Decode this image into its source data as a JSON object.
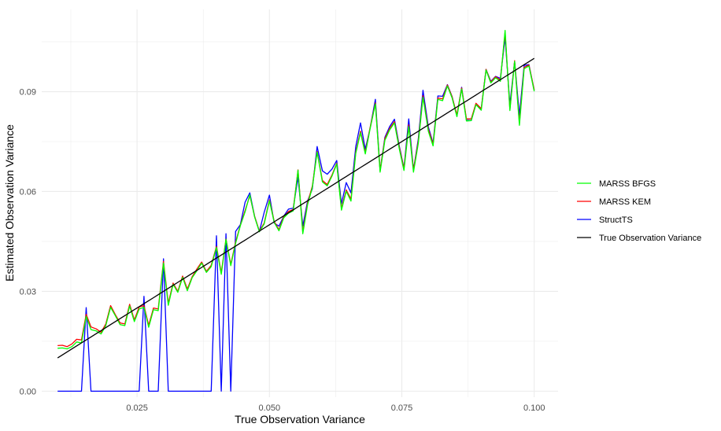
{
  "chart_data": {
    "type": "line",
    "xlabel": "True Observation Variance",
    "ylabel": "Estimated Observation Variance",
    "xlim": [
      0.007,
      0.1045
    ],
    "ylim": [
      -0.0018,
      0.1147
    ],
    "x_ticks": [
      0.025,
      0.05,
      0.075,
      0.1
    ],
    "x_tick_labels": [
      "0.025",
      "0.050",
      "0.075",
      "0.100"
    ],
    "y_ticks": [
      0.0,
      0.03,
      0.06,
      0.09
    ],
    "y_tick_labels": [
      "0.00",
      "0.03",
      "0.06",
      "0.09"
    ],
    "grid": true,
    "legend_position": "right",
    "x": [
      0.01,
      0.0109,
      0.0118,
      0.0127,
      0.0136,
      0.0145,
      0.0154,
      0.0163,
      0.0173,
      0.0182,
      0.0191,
      0.02,
      0.0209,
      0.0218,
      0.0227,
      0.0236,
      0.0245,
      0.0254,
      0.0263,
      0.0272,
      0.0281,
      0.029,
      0.03,
      0.0309,
      0.0318,
      0.0327,
      0.0336,
      0.0345,
      0.0354,
      0.0363,
      0.0372,
      0.0381,
      0.039,
      0.04,
      0.0409,
      0.0418,
      0.0427,
      0.0436,
      0.0445,
      0.0454,
      0.0463,
      0.0472,
      0.0481,
      0.049,
      0.05,
      0.0509,
      0.0518,
      0.0527,
      0.0536,
      0.0545,
      0.0554,
      0.0563,
      0.0572,
      0.0581,
      0.059,
      0.06,
      0.0609,
      0.0618,
      0.0627,
      0.0636,
      0.0645,
      0.0654,
      0.0663,
      0.0672,
      0.0681,
      0.069,
      0.07,
      0.0709,
      0.0718,
      0.0727,
      0.0736,
      0.0745,
      0.0754,
      0.0763,
      0.0772,
      0.0781,
      0.079,
      0.08,
      0.0809,
      0.0818,
      0.0827,
      0.0836,
      0.0845,
      0.0854,
      0.0863,
      0.0872,
      0.0881,
      0.089,
      0.09,
      0.0909,
      0.0918,
      0.0927,
      0.0936,
      0.0945,
      0.0954,
      0.0963,
      0.0972,
      0.0981,
      0.099,
      0.1
    ],
    "series": [
      {
        "name": "MARSS BFGS",
        "color": "#00ff00",
        "values": [
          0.0129,
          0.013,
          0.0127,
          0.0134,
          0.0148,
          0.0145,
          0.0225,
          0.0185,
          0.0181,
          0.0172,
          0.0197,
          0.0252,
          0.0227,
          0.02,
          0.0197,
          0.0256,
          0.0209,
          0.0247,
          0.0252,
          0.0192,
          0.0245,
          0.0242,
          0.0385,
          0.0258,
          0.0321,
          0.0297,
          0.0342,
          0.0302,
          0.0341,
          0.0362,
          0.0385,
          0.0357,
          0.0374,
          0.0432,
          0.0351,
          0.0456,
          0.0377,
          0.0444,
          0.0497,
          0.0539,
          0.059,
          0.0523,
          0.0479,
          0.0502,
          0.0572,
          0.0507,
          0.0482,
          0.0521,
          0.0535,
          0.0542,
          0.0664,
          0.0473,
          0.0561,
          0.0612,
          0.0718,
          0.0629,
          0.0617,
          0.0646,
          0.0683,
          0.0544,
          0.0601,
          0.0571,
          0.0715,
          0.0777,
          0.0713,
          0.0787,
          0.0863,
          0.0658,
          0.0754,
          0.0785,
          0.0806,
          0.0729,
          0.0663,
          0.0795,
          0.0658,
          0.0744,
          0.0883,
          0.0781,
          0.0737,
          0.0877,
          0.0873,
          0.0917,
          0.0881,
          0.0825,
          0.0908,
          0.0812,
          0.0813,
          0.0861,
          0.0844,
          0.0965,
          0.0926,
          0.0942,
          0.0931,
          0.1084,
          0.0843,
          0.0991,
          0.0799,
          0.0969,
          0.0977,
          0.0901
        ]
      },
      {
        "name": "MARSS KEM",
        "color": "#ff0000",
        "values": [
          0.0137,
          0.0138,
          0.0134,
          0.0142,
          0.0156,
          0.0154,
          0.0231,
          0.0193,
          0.0187,
          0.0177,
          0.0202,
          0.0257,
          0.023,
          0.0205,
          0.0202,
          0.0261,
          0.0214,
          0.0253,
          0.0257,
          0.0198,
          0.025,
          0.0247,
          0.039,
          0.0264,
          0.0325,
          0.03,
          0.0346,
          0.0307,
          0.0344,
          0.0367,
          0.0388,
          0.036,
          0.0378,
          0.0435,
          0.0356,
          0.0457,
          0.0381,
          0.0448,
          0.0498,
          0.0543,
          0.0588,
          0.0525,
          0.0481,
          0.0505,
          0.0575,
          0.051,
          0.0485,
          0.0525,
          0.054,
          0.0546,
          0.0665,
          0.0478,
          0.0566,
          0.0616,
          0.072,
          0.0633,
          0.0621,
          0.0649,
          0.0685,
          0.0549,
          0.0605,
          0.0577,
          0.0719,
          0.0781,
          0.0717,
          0.0791,
          0.0866,
          0.0663,
          0.0759,
          0.0789,
          0.081,
          0.0734,
          0.0668,
          0.08,
          0.0664,
          0.075,
          0.0888,
          0.0787,
          0.0742,
          0.0881,
          0.0878,
          0.092,
          0.0884,
          0.083,
          0.0911,
          0.0818,
          0.0818,
          0.0865,
          0.0849,
          0.0967,
          0.0929,
          0.0945,
          0.0935,
          0.1078,
          0.0847,
          0.0993,
          0.0806,
          0.0973,
          0.098,
          0.0905
        ]
      },
      {
        "name": "StructTS",
        "color": "#0000ff",
        "values": [
          0.0,
          0.0,
          0.0,
          0.0,
          0.0,
          0.0,
          0.0251,
          0.0,
          0.0,
          0.0,
          0.0,
          0.0,
          0.0,
          0.0,
          0.0,
          0.0,
          0.0,
          0.0,
          0.0285,
          0.0,
          0.0,
          0.0,
          0.0398,
          0.0,
          0.0,
          0.0,
          0.0,
          0.0,
          0.0,
          0.0,
          0.0,
          0.0,
          0.0,
          0.0467,
          0.0,
          0.0473,
          0.0,
          0.048,
          0.05,
          0.0568,
          0.0596,
          0.0525,
          0.048,
          0.0537,
          0.0589,
          0.0505,
          0.0496,
          0.0526,
          0.0547,
          0.055,
          0.0643,
          0.0496,
          0.0572,
          0.0608,
          0.0735,
          0.0662,
          0.0652,
          0.0667,
          0.0693,
          0.0563,
          0.0627,
          0.0596,
          0.0735,
          0.0806,
          0.0727,
          0.0789,
          0.0877,
          0.0663,
          0.0763,
          0.0795,
          0.0817,
          0.0738,
          0.067,
          0.0818,
          0.0665,
          0.0757,
          0.0904,
          0.0794,
          0.0745,
          0.0887,
          0.0886,
          0.0921,
          0.0885,
          0.0826,
          0.0913,
          0.0814,
          0.0813,
          0.0863,
          0.0848,
          0.0967,
          0.0931,
          0.0946,
          0.094,
          0.1062,
          0.0861,
          0.0991,
          0.0829,
          0.0979,
          0.0981,
          0.0904
        ]
      },
      {
        "name": "True Observation Variance",
        "color": "#000000",
        "values": [
          0.01,
          0.0109,
          0.0118,
          0.0127,
          0.0136,
          0.0145,
          0.0154,
          0.0163,
          0.0173,
          0.0182,
          0.0191,
          0.02,
          0.0209,
          0.0218,
          0.0227,
          0.0236,
          0.0245,
          0.0254,
          0.0263,
          0.0272,
          0.0281,
          0.029,
          0.03,
          0.0309,
          0.0318,
          0.0327,
          0.0336,
          0.0345,
          0.0354,
          0.0363,
          0.0372,
          0.0381,
          0.039,
          0.04,
          0.0409,
          0.0418,
          0.0427,
          0.0436,
          0.0445,
          0.0454,
          0.0463,
          0.0472,
          0.0481,
          0.049,
          0.05,
          0.0509,
          0.0518,
          0.0527,
          0.0536,
          0.0545,
          0.0554,
          0.0563,
          0.0572,
          0.0581,
          0.059,
          0.06,
          0.0609,
          0.0618,
          0.0627,
          0.0636,
          0.0645,
          0.0654,
          0.0663,
          0.0672,
          0.0681,
          0.069,
          0.07,
          0.0709,
          0.0718,
          0.0727,
          0.0736,
          0.0745,
          0.0754,
          0.0763,
          0.0772,
          0.0781,
          0.079,
          0.08,
          0.0809,
          0.0818,
          0.0827,
          0.0836,
          0.0845,
          0.0854,
          0.0863,
          0.0872,
          0.0881,
          0.089,
          0.09,
          0.0909,
          0.0918,
          0.0927,
          0.0936,
          0.0945,
          0.0954,
          0.0963,
          0.0972,
          0.0981,
          0.099,
          0.1
        ]
      }
    ]
  }
}
